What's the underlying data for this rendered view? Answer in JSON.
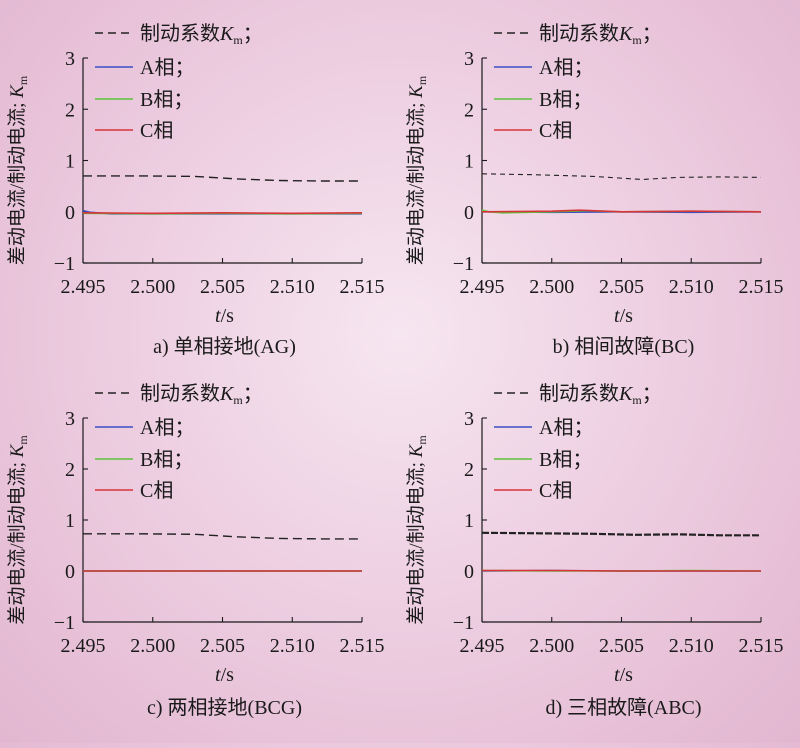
{
  "colors": {
    "km": "#222222",
    "A": "#3b4fc4",
    "B": "#5cc23a",
    "C": "#d8343a",
    "axis": "#1a1a1a"
  },
  "chart_data": [
    {
      "type": "line",
      "caption": "a) 单相接地(AG)",
      "xlabel_main": "t",
      "xlabel_unit": "/s",
      "ylabel": "差动电流/制动电流; K",
      "ylabel_sub": "m",
      "xlim": [
        2.495,
        2.515
      ],
      "ylim": [
        -1,
        3
      ],
      "xticks": [
        "2.495",
        "2.500",
        "2.505",
        "2.510",
        "2.515"
      ],
      "yticks": [
        "−1",
        "0",
        "1",
        "2",
        "3"
      ],
      "legend_position": "top-left",
      "series": [
        {
          "name": "制动系数K",
          "name_sub": "m",
          "suffix": "；",
          "style": "dash",
          "color_key": "km",
          "x": [
            2.495,
            2.499,
            2.503,
            2.506,
            2.509,
            2.512,
            2.515
          ],
          "y": [
            0.7,
            0.7,
            0.69,
            0.64,
            0.61,
            0.6,
            0.6
          ]
        },
        {
          "name": "A相",
          "suffix": "；",
          "style": "solid",
          "color_key": "A",
          "x": [
            2.495,
            2.4955,
            2.497,
            2.505,
            2.515
          ],
          "y": [
            0.02,
            -0.01,
            -0.04,
            -0.04,
            -0.04
          ]
        },
        {
          "name": "B相",
          "suffix": "；",
          "style": "solid",
          "color_key": "B",
          "x": [
            2.495,
            2.5,
            2.505,
            2.51,
            2.515
          ],
          "y": [
            -0.03,
            -0.04,
            -0.03,
            -0.04,
            -0.03
          ]
        },
        {
          "name": "C相",
          "suffix": "",
          "style": "solid",
          "color_key": "C",
          "x": [
            2.495,
            2.5,
            2.505,
            2.51,
            2.515
          ],
          "y": [
            -0.02,
            -0.03,
            -0.02,
            -0.03,
            -0.02
          ]
        }
      ]
    },
    {
      "type": "line",
      "caption": "b) 相间故障(BC)",
      "xlabel_main": "t",
      "xlabel_unit": "/s",
      "ylabel": "差动电流/制动电流; K",
      "ylabel_sub": "m",
      "xlim": [
        2.495,
        2.515
      ],
      "ylim": [
        -1,
        3
      ],
      "xticks": [
        "2.495",
        "2.500",
        "2.505",
        "2.510",
        "2.515"
      ],
      "yticks": [
        "−1",
        "0",
        "1",
        "2",
        "3"
      ],
      "legend_position": "top-left",
      "series": [
        {
          "name": "制动系数K",
          "name_sub": "m",
          "suffix": "；",
          "style": "dash-fine",
          "color_key": "km",
          "x": [
            2.495,
            2.499,
            2.503,
            2.5065,
            2.509,
            2.512,
            2.515
          ],
          "y": [
            0.74,
            0.72,
            0.69,
            0.63,
            0.67,
            0.68,
            0.67
          ]
        },
        {
          "name": "A相",
          "suffix": "；",
          "style": "solid",
          "color_key": "A",
          "x": [
            2.495,
            2.5,
            2.505,
            2.51,
            2.515
          ],
          "y": [
            0.0,
            -0.01,
            0.0,
            -0.01,
            0.0
          ]
        },
        {
          "name": "B相",
          "suffix": "；",
          "style": "solid",
          "color_key": "B",
          "x": [
            2.495,
            2.4955,
            2.4965,
            2.5,
            2.5025,
            2.505,
            2.51,
            2.515
          ],
          "y": [
            0.03,
            0.0,
            -0.02,
            0.0,
            0.02,
            0.0,
            0.01,
            0.0
          ]
        },
        {
          "name": "C相",
          "suffix": "",
          "style": "solid",
          "color_key": "C",
          "x": [
            2.495,
            2.5,
            2.502,
            2.505,
            2.51,
            2.515
          ],
          "y": [
            0.0,
            0.01,
            0.03,
            0.0,
            0.01,
            0.0
          ]
        }
      ]
    },
    {
      "type": "line",
      "caption": "c) 两相接地(BCG)",
      "xlabel_main": "t",
      "xlabel_unit": "/s",
      "ylabel": "差动电流/制动电流; K",
      "ylabel_sub": "m",
      "xlim": [
        2.495,
        2.515
      ],
      "ylim": [
        -1,
        3
      ],
      "xticks": [
        "2.495",
        "2.500",
        "2.505",
        "2.510",
        "2.515"
      ],
      "yticks": [
        "−1",
        "0",
        "1",
        "2",
        "3"
      ],
      "legend_position": "top-left",
      "series": [
        {
          "name": "制动系数K",
          "name_sub": "m",
          "suffix": "；",
          "style": "dash",
          "color_key": "km",
          "x": [
            2.495,
            2.499,
            2.503,
            2.506,
            2.509,
            2.512,
            2.515
          ],
          "y": [
            0.73,
            0.73,
            0.72,
            0.67,
            0.64,
            0.63,
            0.63
          ]
        },
        {
          "name": "A相",
          "suffix": "；",
          "style": "solid",
          "color_key": "A",
          "x": [
            2.495,
            2.5,
            2.505,
            2.51,
            2.515
          ],
          "y": [
            0.0,
            0.0,
            0.0,
            0.0,
            0.0
          ]
        },
        {
          "name": "B相",
          "suffix": "；",
          "style": "solid",
          "color_key": "B",
          "x": [
            2.495,
            2.5,
            2.505,
            2.51,
            2.515
          ],
          "y": [
            0.0,
            0.0,
            0.0,
            0.0,
            0.0
          ]
        },
        {
          "name": "C相",
          "suffix": "",
          "style": "solid",
          "color_key": "C",
          "x": [
            2.495,
            2.5,
            2.505,
            2.51,
            2.515
          ],
          "y": [
            0.0,
            0.0,
            0.0,
            0.0,
            0.0
          ]
        }
      ]
    },
    {
      "type": "line",
      "caption": "d) 三相故障(ABC)",
      "xlabel_main": "t",
      "xlabel_unit": "/s",
      "ylabel": "差动电流/制动电流; K",
      "ylabel_sub": "m",
      "xlim": [
        2.495,
        2.515
      ],
      "ylim": [
        -1,
        3
      ],
      "xticks": [
        "2.495",
        "2.500",
        "2.505",
        "2.510",
        "2.515"
      ],
      "yticks": [
        "−1",
        "0",
        "1",
        "2",
        "3"
      ],
      "legend_position": "top-left",
      "series": [
        {
          "name": "制动系数K",
          "name_sub": "m",
          "suffix": "；",
          "style": "dash-bold",
          "color_key": "km",
          "x": [
            2.495,
            2.499,
            2.503,
            2.506,
            2.509,
            2.512,
            2.515
          ],
          "y": [
            0.75,
            0.74,
            0.73,
            0.71,
            0.72,
            0.7,
            0.7
          ]
        },
        {
          "name": "A相",
          "suffix": "；",
          "style": "solid",
          "color_key": "A",
          "x": [
            2.495,
            2.5,
            2.505,
            2.51,
            2.515
          ],
          "y": [
            0.0,
            0.01,
            0.0,
            0.0,
            0.0
          ]
        },
        {
          "name": "B相",
          "suffix": "；",
          "style": "solid",
          "color_key": "B",
          "x": [
            2.495,
            2.5,
            2.505,
            2.51,
            2.515
          ],
          "y": [
            0.01,
            0.0,
            0.0,
            0.01,
            0.0
          ]
        },
        {
          "name": "C相",
          "suffix": "",
          "style": "solid",
          "color_key": "C",
          "x": [
            2.495,
            2.5,
            2.505,
            2.51,
            2.515
          ],
          "y": [
            0.01,
            0.01,
            0.0,
            0.0,
            0.0
          ]
        }
      ]
    }
  ]
}
